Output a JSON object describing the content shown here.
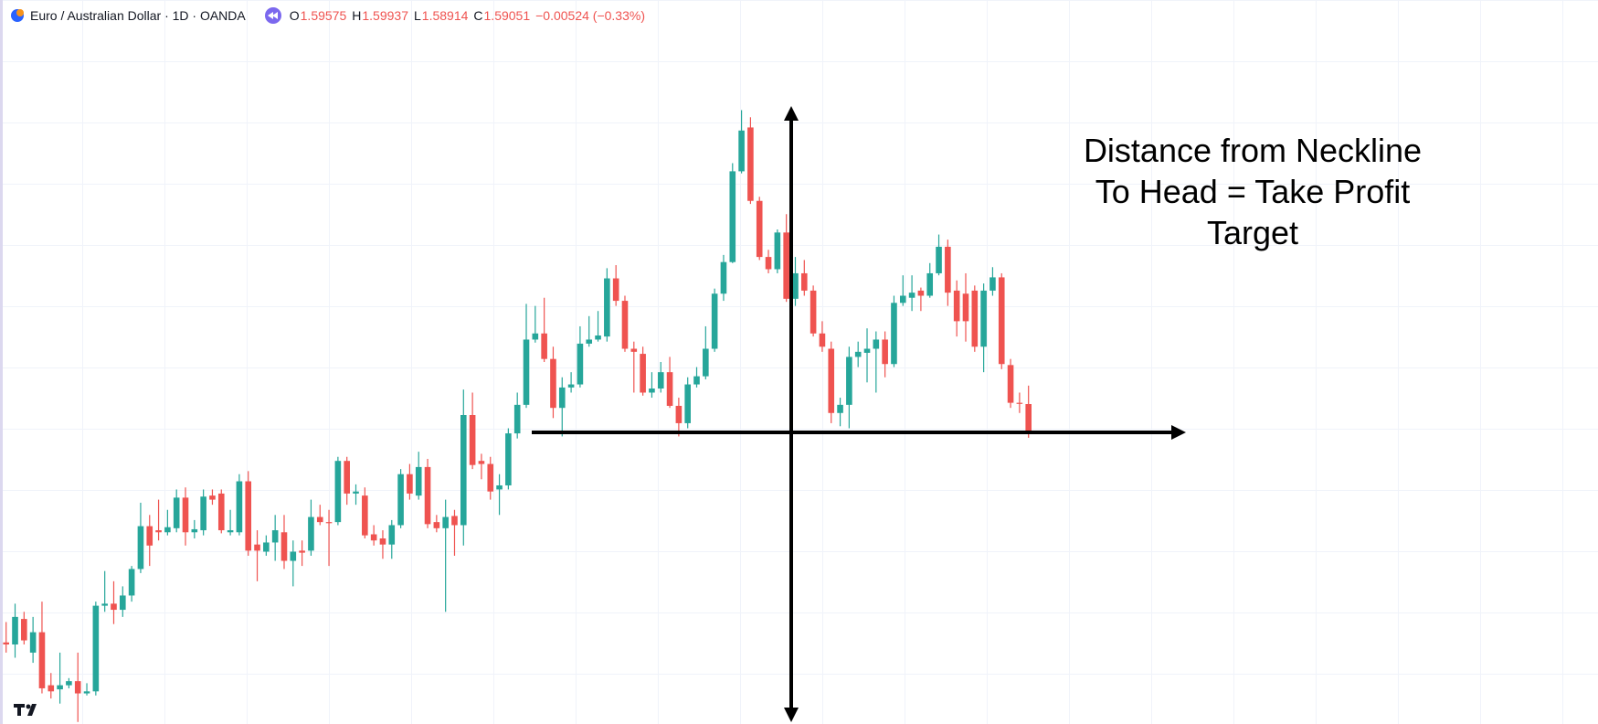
{
  "header": {
    "symbol": "Euro / Australian Dollar · 1D · OANDA",
    "ohlc": {
      "open_label": "O",
      "open": 1.59575,
      "high_label": "H",
      "high": 1.59937,
      "low_label": "L",
      "low": 1.58914,
      "close_label": "C",
      "close": 1.59051,
      "change": "−0.00524 (−0.33%)"
    }
  },
  "chart_data": {
    "type": "candlestick",
    "up_color": "#26a69a",
    "down_color": "#ef5350",
    "ylim": [
      1.533,
      1.675
    ],
    "annotation": [
      "Distance from Neckline",
      "To Head = Take Profit",
      "Target"
    ],
    "open": [
      1.549,
      1.5486,
      1.5536,
      1.547,
      1.551,
      1.5406,
      1.5398,
      1.5406,
      1.5414,
      1.539,
      1.5394,
      1.5562,
      1.5566,
      1.5554,
      1.5582,
      1.5634,
      1.5718,
      1.571,
      1.5706,
      1.5714,
      1.5774,
      1.5706,
      1.571,
      1.5778,
      1.5782,
      1.5706,
      1.5706,
      1.5806,
      1.5682,
      1.5668,
      1.5686,
      1.5706,
      1.565,
      1.567,
      1.567,
      1.5736,
      1.5726,
      1.5726,
      1.5846,
      1.5782,
      1.5778,
      1.5702,
      1.5694,
      1.5682,
      1.572,
      1.582,
      1.5778,
      1.5834,
      1.5726,
      1.5714,
      1.5738,
      1.572,
      1.5936,
      1.5846,
      1.584,
      1.579,
      1.5798,
      1.59,
      1.5956,
      1.6084,
      1.6096,
      1.6046,
      1.595,
      1.599,
      1.5996,
      1.6076,
      1.6084,
      1.609,
      1.6204,
      1.616,
      1.6066,
      1.6056,
      1.598,
      1.5988,
      1.602,
      1.5954,
      1.592,
      1.5996,
      1.6012,
      1.6066,
      1.6174,
      1.6236,
      1.6414,
      1.65,
      1.6356,
      1.6246,
      1.6222,
      1.6294,
      1.6164,
      1.6214,
      1.618,
      1.6096,
      1.6066,
      1.594,
      1.5956,
      1.605,
      1.6058,
      1.6066,
      1.6084,
      1.6036,
      1.6156,
      1.6166,
      1.618,
      1.617,
      1.6214,
      1.6266,
      1.618,
      1.6174,
      1.618,
      1.607,
      1.618,
      1.6206,
      1.6034,
      1.596,
      1.59575
    ],
    "high": [
      1.553,
      1.5566,
      1.555,
      1.554,
      1.557,
      1.543,
      1.547,
      1.542,
      1.547,
      1.541,
      1.557,
      1.563,
      1.561,
      1.56,
      1.564,
      1.5764,
      1.574,
      1.577,
      1.575,
      1.579,
      1.5794,
      1.573,
      1.579,
      1.579,
      1.579,
      1.575,
      1.582,
      1.5826,
      1.571,
      1.57,
      1.574,
      1.574,
      1.569,
      1.569,
      1.577,
      1.576,
      1.575,
      1.5854,
      1.5854,
      1.58,
      1.5794,
      1.572,
      1.571,
      1.573,
      1.583,
      1.584,
      1.5864,
      1.585,
      1.574,
      1.577,
      1.575,
      1.5986,
      1.598,
      1.586,
      1.5854,
      1.582,
      1.591,
      1.598,
      1.6154,
      1.615,
      1.6166,
      1.607,
      1.601,
      1.602,
      1.611,
      1.613,
      1.614,
      1.6224,
      1.623,
      1.617,
      1.608,
      1.607,
      1.602,
      1.604,
      1.605,
      1.597,
      1.601,
      1.603,
      1.611,
      1.6184,
      1.625,
      1.643,
      1.6534,
      1.652,
      1.6364,
      1.626,
      1.63,
      1.633,
      1.6246,
      1.624,
      1.619,
      1.612,
      1.608,
      1.597,
      1.607,
      1.608,
      1.6106,
      1.61,
      1.61,
      1.617,
      1.621,
      1.621,
      1.6186,
      1.6234,
      1.629,
      1.628,
      1.62,
      1.6214,
      1.619,
      1.6194,
      1.6226,
      1.6214,
      1.6046,
      1.598,
      1.59937
    ],
    "low": [
      1.547,
      1.546,
      1.5486,
      1.545,
      1.539,
      1.538,
      1.537,
      1.54,
      1.5334,
      1.5386,
      1.5386,
      1.555,
      1.5526,
      1.554,
      1.557,
      1.5626,
      1.564,
      1.569,
      1.57,
      1.5706,
      1.568,
      1.5694,
      1.57,
      1.576,
      1.5704,
      1.57,
      1.57,
      1.566,
      1.561,
      1.566,
      1.565,
      1.5634,
      1.56,
      1.564,
      1.566,
      1.572,
      1.564,
      1.572,
      1.576,
      1.576,
      1.5694,
      1.568,
      1.5654,
      1.5654,
      1.5714,
      1.577,
      1.577,
      1.5714,
      1.5706,
      1.555,
      1.566,
      1.568,
      1.583,
      1.581,
      1.577,
      1.574,
      1.579,
      1.589,
      1.595,
      1.6078,
      1.604,
      1.593,
      1.5894,
      1.598,
      1.599,
      1.607,
      1.608,
      1.608,
      1.615,
      1.606,
      1.598,
      1.5974,
      1.597,
      1.598,
      1.595,
      1.5894,
      1.591,
      1.599,
      1.6006,
      1.606,
      1.616,
      1.6234,
      1.641,
      1.635,
      1.624,
      1.6214,
      1.6214,
      1.6158,
      1.615,
      1.617,
      1.609,
      1.606,
      1.592,
      1.5914,
      1.591,
      1.603,
      1.6,
      1.598,
      1.601,
      1.603,
      1.615,
      1.614,
      1.614,
      1.6166,
      1.621,
      1.615,
      1.609,
      1.608,
      1.606,
      1.602,
      1.617,
      1.6026,
      1.595,
      1.594,
      1.58914
    ],
    "close": [
      1.5486,
      1.554,
      1.5494,
      1.551,
      1.54,
      1.5394,
      1.5406,
      1.5414,
      1.539,
      1.5394,
      1.5562,
      1.5566,
      1.5554,
      1.5582,
      1.5634,
      1.5718,
      1.568,
      1.5706,
      1.5716,
      1.5774,
      1.5706,
      1.5712,
      1.5776,
      1.577,
      1.571,
      1.571,
      1.5806,
      1.567,
      1.567,
      1.5686,
      1.571,
      1.565,
      1.5668,
      1.5666,
      1.5736,
      1.5726,
      1.5724,
      1.5846,
      1.5782,
      1.5786,
      1.57,
      1.569,
      1.5682,
      1.572,
      1.582,
      1.5782,
      1.5834,
      1.5722,
      1.5714,
      1.5736,
      1.572,
      1.5936,
      1.5838,
      1.584,
      1.5786,
      1.5798,
      1.59,
      1.5956,
      1.6084,
      1.6096,
      1.6046,
      1.595,
      1.599,
      1.5996,
      1.6076,
      1.6084,
      1.6092,
      1.6204,
      1.616,
      1.6066,
      1.606,
      1.598,
      1.5988,
      1.602,
      1.5954,
      1.592,
      1.5996,
      1.6012,
      1.6066,
      1.6174,
      1.6236,
      1.6414,
      1.6494,
      1.6356,
      1.6246,
      1.6222,
      1.6294,
      1.6164,
      1.6214,
      1.618,
      1.6096,
      1.607,
      1.594,
      1.5956,
      1.605,
      1.606,
      1.6066,
      1.6084,
      1.6036,
      1.6156,
      1.617,
      1.6176,
      1.617,
      1.6214,
      1.6266,
      1.6176,
      1.612,
      1.612,
      1.607,
      1.618,
      1.6206,
      1.6036,
      1.596,
      1.5958,
      1.59051
    ]
  }
}
